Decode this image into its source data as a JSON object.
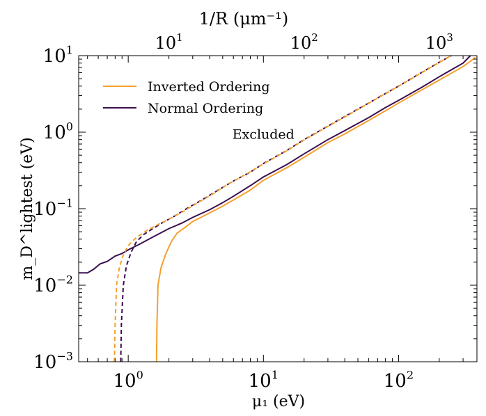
{
  "chart_data": {
    "type": "line",
    "scale": "log-log",
    "xlabel": "μ₁ (eV)",
    "ylabel": "m_D^lightest (eV)",
    "top_xlabel": "1/R (μm⁻¹)",
    "xlim": [
      0.43,
      380
    ],
    "ylim": [
      0.001,
      10
    ],
    "x_ticks": [
      {
        "value": 1,
        "base": "10",
        "exp": "0"
      },
      {
        "value": 10,
        "base": "10",
        "exp": "1"
      },
      {
        "value": 100,
        "base": "10",
        "exp": "2"
      }
    ],
    "y_ticks": [
      {
        "value": 0.001,
        "base": "10",
        "exp": "−3"
      },
      {
        "value": 0.01,
        "base": "10",
        "exp": "−2"
      },
      {
        "value": 0.1,
        "base": "10",
        "exp": "−1"
      },
      {
        "value": 1,
        "base": "10",
        "exp": "0"
      },
      {
        "value": 10,
        "base": "10",
        "exp": "1"
      }
    ],
    "top_ticks": [
      {
        "label_base": "10",
        "exp": "1",
        "x_at": 2.0
      },
      {
        "label_base": "10",
        "exp": "2",
        "x_at": 20.0
      },
      {
        "label_base": "10",
        "exp": "3",
        "x_at": 200.0
      }
    ],
    "annotation": {
      "text": "Excluded",
      "x": 10,
      "y": 0.95,
      "color": "#aaaaaa"
    },
    "legend": {
      "placement": "top-left",
      "entries": [
        {
          "label": "Inverted Ordering",
          "color": "#f5a02c"
        },
        {
          "label": "Normal Ordering",
          "color": "#3b0f50"
        }
      ]
    },
    "series": [
      {
        "name": "Normal Ordering",
        "style": "solid",
        "color": "#3b0f50",
        "points": [
          [
            0.43,
            0.0145
          ],
          [
            0.5,
            0.0145
          ],
          [
            0.55,
            0.016
          ],
          [
            0.62,
            0.019
          ],
          [
            0.7,
            0.0205
          ],
          [
            0.8,
            0.024
          ],
          [
            0.9,
            0.026
          ],
          [
            1.0,
            0.029
          ],
          [
            1.2,
            0.034
          ],
          [
            1.5,
            0.042
          ],
          [
            2.0,
            0.055
          ],
          [
            2.5,
            0.065
          ],
          [
            3.0,
            0.077
          ],
          [
            4.0,
            0.097
          ],
          [
            5.0,
            0.12
          ],
          [
            6.0,
            0.145
          ],
          [
            8.0,
            0.2
          ],
          [
            10,
            0.26
          ],
          [
            15,
            0.38
          ],
          [
            20,
            0.52
          ],
          [
            30,
            0.8
          ],
          [
            40,
            1.05
          ],
          [
            60,
            1.55
          ],
          [
            80,
            2.1
          ],
          [
            100,
            2.6
          ],
          [
            150,
            3.9
          ],
          [
            200,
            5.3
          ],
          [
            300,
            8.0
          ],
          [
            340,
            10.0
          ]
        ]
      },
      {
        "name": "Inverted Ordering",
        "style": "solid",
        "color": "#f5a02c",
        "points": [
          [
            1.62,
            0.001
          ],
          [
            1.63,
            0.003
          ],
          [
            1.66,
            0.01
          ],
          [
            1.75,
            0.017
          ],
          [
            1.9,
            0.026
          ],
          [
            2.1,
            0.038
          ],
          [
            2.3,
            0.048
          ],
          [
            2.6,
            0.056
          ],
          [
            3.0,
            0.068
          ],
          [
            3.5,
            0.078
          ],
          [
            4.0,
            0.088
          ],
          [
            5.0,
            0.108
          ],
          [
            6.0,
            0.13
          ],
          [
            8.0,
            0.175
          ],
          [
            10,
            0.235
          ],
          [
            15,
            0.345
          ],
          [
            20,
            0.47
          ],
          [
            30,
            0.73
          ],
          [
            40,
            0.95
          ],
          [
            60,
            1.42
          ],
          [
            80,
            1.9
          ],
          [
            100,
            2.4
          ],
          [
            150,
            3.6
          ],
          [
            200,
            4.8
          ],
          [
            300,
            7.2
          ],
          [
            370,
            9.5
          ]
        ]
      },
      {
        "name": "Normal Ordering excluded boundary",
        "style": "dashed",
        "color": "#3b0f50",
        "points": [
          [
            0.88,
            0.001
          ],
          [
            0.89,
            0.003
          ],
          [
            0.92,
            0.01
          ],
          [
            0.97,
            0.018
          ],
          [
            1.05,
            0.027
          ],
          [
            1.15,
            0.037
          ],
          [
            1.3,
            0.046
          ],
          [
            1.5,
            0.054
          ],
          [
            1.8,
            0.066
          ],
          [
            2.2,
            0.08
          ],
          [
            2.7,
            0.1
          ],
          [
            3.5,
            0.13
          ],
          [
            4.5,
            0.17
          ],
          [
            6.0,
            0.23
          ],
          [
            8.0,
            0.3
          ],
          [
            10,
            0.39
          ],
          [
            15,
            0.58
          ],
          [
            20,
            0.8
          ],
          [
            30,
            1.2
          ],
          [
            40,
            1.6
          ],
          [
            60,
            2.4
          ],
          [
            80,
            3.2
          ],
          [
            100,
            4.0
          ],
          [
            150,
            6.1
          ],
          [
            200,
            8.2
          ],
          [
            245,
            10.0
          ]
        ]
      },
      {
        "name": "Inverted Ordering excluded boundary",
        "style": "dashed",
        "color": "#f5a02c",
        "points": [
          [
            0.79,
            0.001
          ],
          [
            0.8,
            0.003
          ],
          [
            0.82,
            0.01
          ],
          [
            0.86,
            0.017
          ],
          [
            0.92,
            0.025
          ],
          [
            1.0,
            0.033
          ],
          [
            1.15,
            0.042
          ],
          [
            1.35,
            0.051
          ],
          [
            1.6,
            0.06
          ],
          [
            2.0,
            0.073
          ],
          [
            2.5,
            0.09
          ],
          [
            3.2,
            0.117
          ],
          [
            4.2,
            0.155
          ],
          [
            5.5,
            0.21
          ],
          [
            7.5,
            0.285
          ],
          [
            10,
            0.385
          ],
          [
            15,
            0.575
          ],
          [
            20,
            0.79
          ],
          [
            30,
            1.19
          ],
          [
            40,
            1.58
          ],
          [
            60,
            2.38
          ],
          [
            80,
            3.18
          ],
          [
            100,
            3.98
          ],
          [
            150,
            6.05
          ],
          [
            200,
            8.15
          ],
          [
            245,
            10.0
          ]
        ]
      }
    ]
  }
}
